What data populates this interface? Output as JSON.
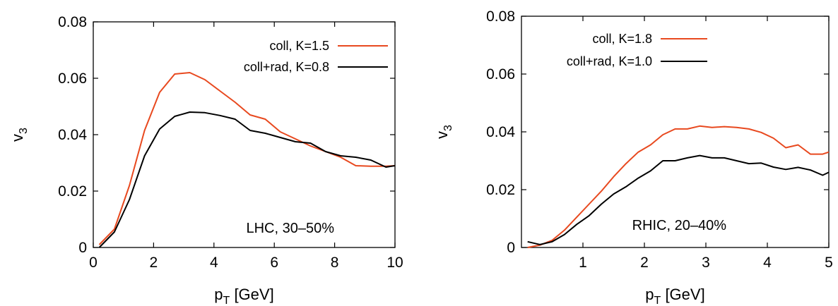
{
  "chart_data": [
    {
      "type": "line",
      "xlabel": "p",
      "xlabel_sub": "T",
      "xlabel_unit": " [GeV]",
      "ylabel": "v",
      "ylabel_sub": "3",
      "xlim": [
        0,
        10
      ],
      "ylim": [
        0,
        0.08
      ],
      "xticks": [
        0,
        2,
        4,
        6,
        8,
        10
      ],
      "xtick_labels": [
        "0",
        "2",
        "4",
        "6",
        "8",
        "10"
      ],
      "yticks": [
        0,
        0.02,
        0.04,
        0.06,
        0.08
      ],
      "ytick_labels": [
        "0",
        "0.02",
        "0.04",
        "0.06",
        "0.08"
      ],
      "grid": false,
      "legend_position": "top-right",
      "annotation": "LHC, 30–50%",
      "series": [
        {
          "name": "coll, K=1.5",
          "color": "#e8491f",
          "x": [
            0.2,
            0.7,
            1.2,
            1.7,
            2.2,
            2.7,
            3.2,
            3.7,
            4.2,
            4.7,
            5.2,
            5.7,
            6.2,
            6.7,
            7.2,
            7.7,
            8.2,
            8.7,
            9.2,
            9.7,
            10.0
          ],
          "y": [
            0.001,
            0.0065,
            0.022,
            0.0415,
            0.055,
            0.0615,
            0.062,
            0.0595,
            0.0555,
            0.0515,
            0.047,
            0.0455,
            0.041,
            0.0385,
            0.036,
            0.034,
            0.032,
            0.029,
            0.0288,
            0.0288,
            0.029
          ]
        },
        {
          "name": "coll+rad, K=0.8",
          "color": "#000000",
          "x": [
            0.2,
            0.7,
            1.2,
            1.7,
            2.2,
            2.7,
            3.2,
            3.7,
            4.2,
            4.7,
            5.2,
            5.7,
            6.2,
            6.7,
            7.2,
            7.7,
            8.2,
            8.7,
            9.2,
            9.7,
            10.0
          ],
          "y": [
            0.0,
            0.0055,
            0.017,
            0.0325,
            0.042,
            0.0465,
            0.048,
            0.0478,
            0.0468,
            0.0455,
            0.0415,
            0.0405,
            0.039,
            0.0375,
            0.037,
            0.034,
            0.0325,
            0.032,
            0.031,
            0.0285,
            0.029
          ]
        }
      ]
    },
    {
      "type": "line",
      "xlabel": "p",
      "xlabel_sub": "T",
      "xlabel_unit": " [GeV]",
      "ylabel": "v",
      "ylabel_sub": "3",
      "xlim": [
        0,
        5
      ],
      "ylim": [
        0,
        0.08
      ],
      "xticks": [
        1,
        2,
        3,
        4,
        5
      ],
      "xtick_labels": [
        "1",
        "2",
        "3",
        "4",
        "5"
      ],
      "yticks": [
        0,
        0.02,
        0.04,
        0.06,
        0.08
      ],
      "ytick_labels": [
        "0",
        "0.02",
        "0.04",
        "0.06",
        "0.08"
      ],
      "grid": false,
      "legend_position": "top-left",
      "annotation": "RHIC, 20–40%",
      "series": [
        {
          "name": "coll, K=1.8",
          "color": "#e8491f",
          "x": [
            0.1,
            0.3,
            0.5,
            0.7,
            0.9,
            1.1,
            1.3,
            1.5,
            1.7,
            1.9,
            2.1,
            2.3,
            2.5,
            2.7,
            2.9,
            3.1,
            3.3,
            3.5,
            3.7,
            3.9,
            4.1,
            4.3,
            4.5,
            4.7,
            4.9,
            5.0
          ],
          "y": [
            0.0,
            0.0008,
            0.0025,
            0.006,
            0.0105,
            0.015,
            0.0195,
            0.0245,
            0.029,
            0.033,
            0.0355,
            0.039,
            0.041,
            0.041,
            0.042,
            0.0415,
            0.0418,
            0.0415,
            0.041,
            0.0398,
            0.0378,
            0.0345,
            0.0355,
            0.0323,
            0.0323,
            0.033
          ]
        },
        {
          "name": "coll+rad, K=1.0",
          "color": "#000000",
          "x": [
            0.1,
            0.3,
            0.5,
            0.7,
            0.9,
            1.1,
            1.3,
            1.5,
            1.7,
            1.9,
            2.1,
            2.3,
            2.5,
            2.7,
            2.9,
            3.1,
            3.3,
            3.5,
            3.7,
            3.9,
            4.1,
            4.3,
            4.5,
            4.7,
            4.9,
            5.0
          ],
          "y": [
            0.002,
            0.001,
            0.002,
            0.0045,
            0.008,
            0.011,
            0.015,
            0.0185,
            0.021,
            0.024,
            0.0265,
            0.03,
            0.03,
            0.031,
            0.0318,
            0.031,
            0.031,
            0.03,
            0.029,
            0.0292,
            0.0278,
            0.027,
            0.0277,
            0.0268,
            0.025,
            0.026
          ]
        }
      ]
    }
  ]
}
